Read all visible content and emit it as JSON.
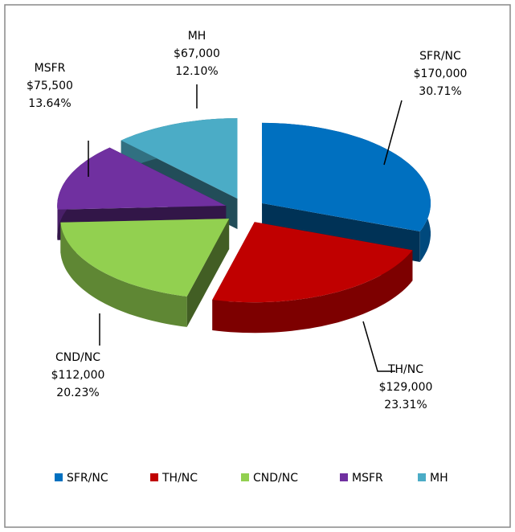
{
  "chart_data": {
    "type": "pie3d",
    "categories": [
      "SFR/NC",
      "TH/NC",
      "CND/NC",
      "MSFR",
      "MH"
    ],
    "values": [
      170000,
      129000,
      112000,
      75500,
      67000
    ],
    "value_labels": [
      "$170,000",
      "$129,000",
      "$112,000",
      "$75,500",
      "$67,000"
    ],
    "percents": [
      30.71,
      23.31,
      20.23,
      13.64,
      12.1
    ],
    "percent_labels": [
      "30.71%",
      "23.31%",
      "20.23%",
      "13.64%",
      "12.10%"
    ],
    "colors": [
      "#0070c0",
      "#c00000",
      "#92d050",
      "#7030a0",
      "#4bacc6"
    ],
    "legend": "bottom"
  }
}
